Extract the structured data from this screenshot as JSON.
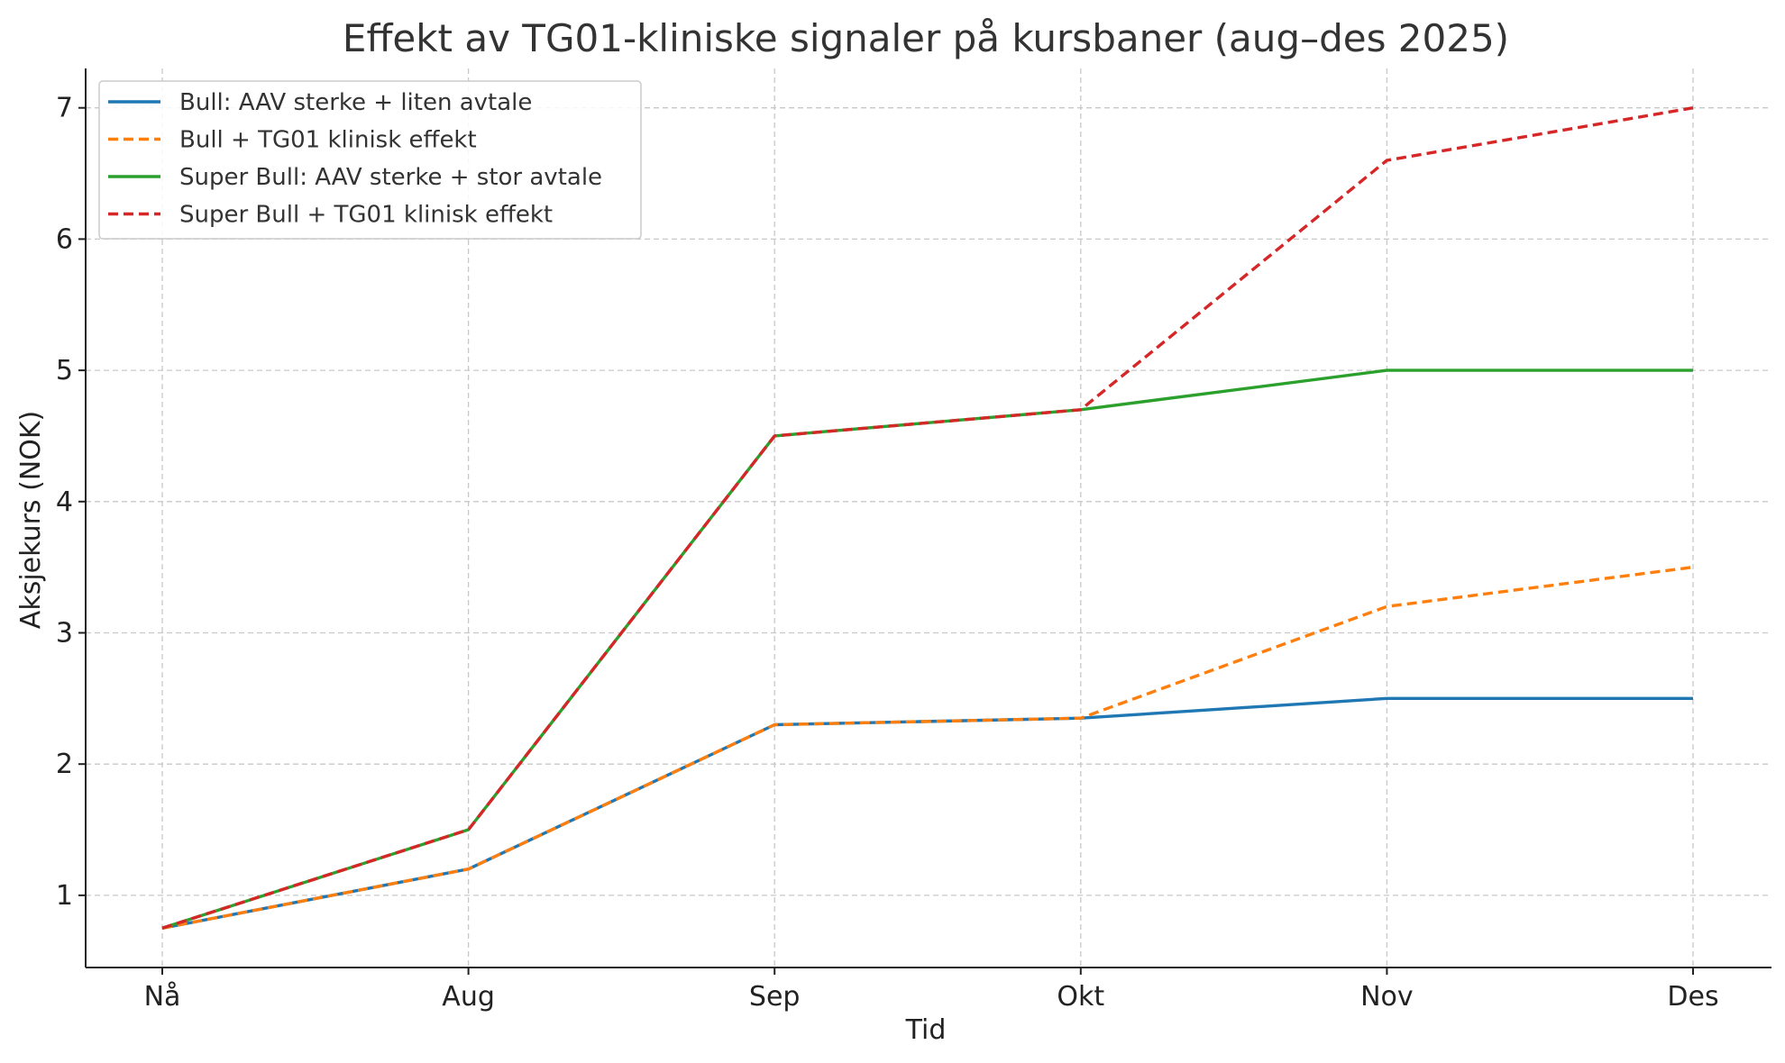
{
  "chart_data": {
    "type": "line",
    "title": "Effekt av TG01-kliniske signaler på kursbaner (aug–des 2025)",
    "xlabel": "Tid",
    "ylabel": "Aksjekurs (NOK)",
    "categories": [
      "Nå",
      "Aug",
      "Sep",
      "Okt",
      "Nov",
      "Des"
    ],
    "ylim": [
      0.45,
      7.3
    ],
    "yticks": [
      1,
      2,
      3,
      4,
      5,
      6,
      7
    ],
    "grid": true,
    "legend_position": "top-left",
    "series": [
      {
        "name": "Bull: AAV sterke + liten avtale",
        "values": [
          0.75,
          1.2,
          2.3,
          2.35,
          2.5,
          2.5
        ],
        "color": "#1f77b4",
        "dashed": false
      },
      {
        "name": "Bull + TG01 klinisk effekt",
        "values": [
          0.75,
          1.2,
          2.3,
          2.35,
          3.2,
          3.5
        ],
        "color": "#ff7f0e",
        "dashed": true
      },
      {
        "name": "Super Bull: AAV sterke + stor avtale",
        "values": [
          0.75,
          1.5,
          4.5,
          4.7,
          5.0,
          5.0
        ],
        "color": "#2ca02c",
        "dashed": false
      },
      {
        "name": "Super Bull + TG01 klinisk effekt",
        "values": [
          0.75,
          1.5,
          4.5,
          4.7,
          6.6,
          7.0
        ],
        "color": "#d62728",
        "dashed": true
      }
    ]
  }
}
